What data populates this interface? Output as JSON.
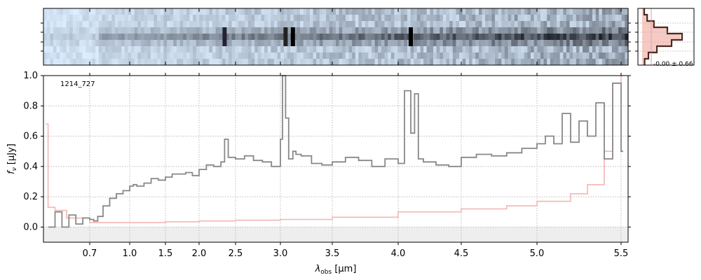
{
  "chart_data": [
    {
      "type": "heatmap",
      "panel": "2d-spectrum",
      "colormap": "bone_r",
      "xlim": [
        0.5,
        5.55
      ],
      "description_rows": 9,
      "trace_row": 4
    },
    {
      "type": "line",
      "panel": "1d-spectrum",
      "annotation": "1214_727",
      "xlabel": "λobs [μm]",
      "ylabel": "fν [μJy]",
      "xlim": [
        0.5,
        5.55
      ],
      "ylim": [
        -0.1,
        1.0
      ],
      "grid": true,
      "x_ticks": [
        0.7,
        1.0,
        1.5,
        2.0,
        2.5,
        3.0,
        3.5,
        4.0,
        4.5,
        5.0,
        5.5
      ],
      "x_tick_labels": [
        "0.7",
        "1.0",
        "1.5",
        "2.0",
        "2.5",
        "3.0",
        "3.5",
        "4.0",
        "4.5",
        "5.0",
        "5.5"
      ],
      "y_ticks": [
        0.0,
        0.2,
        0.4,
        0.6,
        0.8,
        1.0
      ],
      "y_tick_labels": [
        "0.0",
        "0.2",
        "0.4",
        "0.6",
        "0.8",
        "1.0"
      ],
      "colors": {
        "flux": "#888888",
        "error": "#f4b6b3",
        "zero_band": "#eeeeee"
      },
      "flux": {
        "x": [
          0.52,
          0.55,
          0.58,
          0.61,
          0.64,
          0.67,
          0.7,
          0.73,
          0.76,
          0.8,
          0.85,
          0.9,
          0.95,
          1.0,
          1.05,
          1.1,
          1.2,
          1.3,
          1.4,
          1.5,
          1.6,
          1.7,
          1.8,
          1.9,
          2.0,
          2.1,
          2.2,
          2.3,
          2.35,
          2.4,
          2.5,
          2.6,
          2.7,
          2.8,
          2.9,
          3.0,
          3.02,
          3.05,
          3.08,
          3.12,
          3.15,
          3.2,
          3.3,
          3.4,
          3.5,
          3.6,
          3.7,
          3.8,
          3.9,
          4.0,
          4.05,
          4.1,
          4.13,
          4.16,
          4.2,
          4.3,
          4.4,
          4.5,
          4.6,
          4.7,
          4.8,
          4.9,
          5.0,
          5.05,
          5.1,
          5.15,
          5.2,
          5.25,
          5.3,
          5.35,
          5.4,
          5.45,
          5.5
        ],
        "y": [
          0.0,
          0.1,
          0.0,
          0.08,
          0.02,
          0.06,
          0.05,
          0.04,
          0.07,
          0.14,
          0.19,
          0.22,
          0.24,
          0.27,
          0.28,
          0.27,
          0.29,
          0.32,
          0.31,
          0.33,
          0.35,
          0.35,
          0.36,
          0.34,
          0.38,
          0.41,
          0.4,
          0.43,
          0.58,
          0.46,
          0.45,
          0.47,
          0.44,
          0.43,
          0.4,
          0.58,
          1.0,
          0.72,
          0.45,
          0.5,
          0.48,
          0.47,
          0.42,
          0.41,
          0.43,
          0.46,
          0.44,
          0.4,
          0.45,
          0.42,
          0.9,
          0.62,
          0.88,
          0.45,
          0.43,
          0.41,
          0.4,
          0.46,
          0.48,
          0.47,
          0.49,
          0.52,
          0.55,
          0.6,
          0.55,
          0.75,
          0.56,
          0.7,
          0.6,
          0.82,
          0.45,
          0.95,
          0.5
        ]
      },
      "error": {
        "x": [
          0.51,
          0.52,
          0.55,
          0.6,
          0.7,
          0.8,
          1.0,
          1.5,
          2.0,
          2.5,
          3.0,
          3.5,
          4.0,
          4.2,
          4.5,
          4.8,
          5.0,
          5.2,
          5.3,
          5.4,
          5.45,
          5.5
        ],
        "y": [
          0.68,
          0.13,
          0.11,
          0.06,
          0.03,
          0.03,
          0.03,
          0.035,
          0.04,
          0.045,
          0.05,
          0.065,
          0.1,
          0.1,
          0.12,
          0.14,
          0.17,
          0.22,
          0.28,
          0.5,
          0.95,
          1.0
        ]
      }
    },
    {
      "type": "bar",
      "panel": "profile",
      "annotation": "-0.00 ± 0.66",
      "colors": {
        "profile": "#4a2a20",
        "model": "#f7c9c3"
      },
      "profile_values": [
        0.05,
        0.12,
        0.28,
        0.6,
        0.95,
        0.7,
        0.35,
        0.15,
        0.06
      ],
      "model_values": [
        0.06,
        0.14,
        0.3,
        0.62,
        0.92,
        0.68,
        0.32,
        0.14,
        0.05
      ]
    }
  ]
}
